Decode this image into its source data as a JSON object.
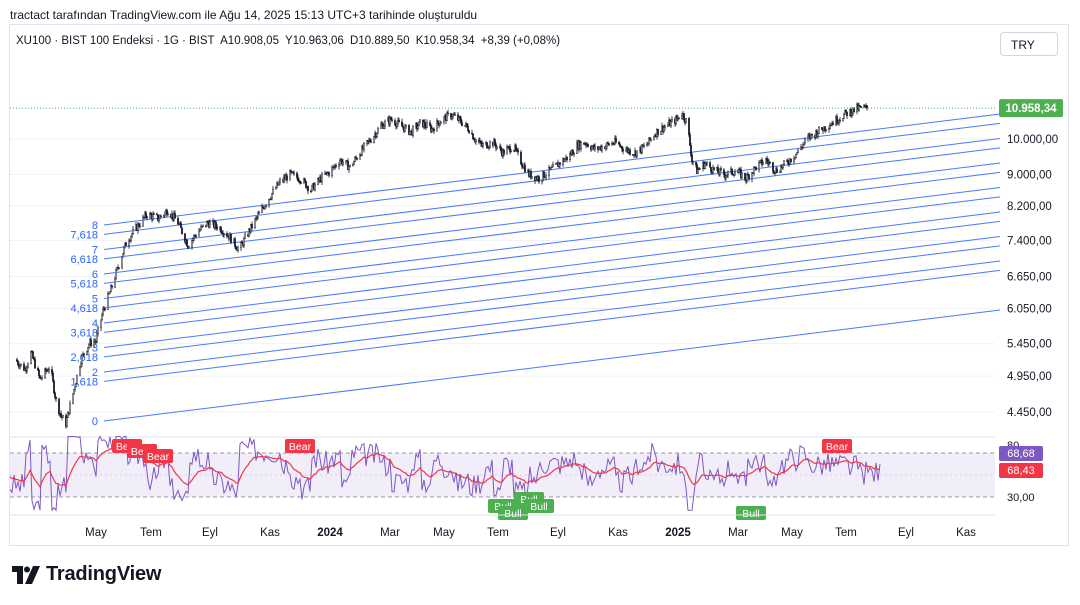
{
  "header": {
    "attribution": "tractact tarafından TradingView.com ile Ağu 14, 2025 15:13 UTC+3 tarihinde oluşturuldu"
  },
  "symbol": {
    "name": "XU100 · BIST 100 Endeksi · 1G · BIST",
    "open": "A10.908,05",
    "high": "Y10.963,06",
    "low": "D10.889,50",
    "close": "K10.958,34",
    "change": "+8,39 (+0,08%)"
  },
  "currency": "TRY",
  "brand": "TradingView",
  "colors": {
    "fib_line": "#2962ff",
    "fib_label": "#2962ff",
    "candle": "#131722",
    "price_badge": "#4caf50",
    "rsi_line": "#7e57c2",
    "rsi_ma": "#f23645",
    "rsi_band": "#ede7f6",
    "bear": "#f23645",
    "bull": "#4caf50"
  },
  "chart_data": [
    {
      "type": "candlestick",
      "series_description_from_image": "BIST 100 daily price with Fibonacci channel",
      "price_axis_labels": [
        "10.000,00",
        "9.000,00",
        "8.200,00",
        "7.400,00",
        "6.650,00",
        "6.050,00",
        "5.450,00",
        "4.950,00",
        "4.450,00"
      ],
      "price_axis_values": [
        10000,
        9000,
        8200,
        7400,
        6650,
        6050,
        5450,
        4950,
        4450
      ],
      "current_price_label": "10.958,34",
      "current_price": 10958.34,
      "log_scale": true,
      "time_axis_labels": [
        "May",
        "Tem",
        "Eyl",
        "Kas",
        "2024",
        "Mar",
        "May",
        "Tem",
        "Eyl",
        "Kas",
        "2025",
        "Mar",
        "May",
        "Tem",
        "Eyl",
        "Kas"
      ],
      "approx_close_path": [
        [
          "2023-04-15",
          5200
        ],
        [
          "2023-04-25",
          5050
        ],
        [
          "2023-05-01",
          5300
        ],
        [
          "2023-05-10",
          4900
        ],
        [
          "2023-05-20",
          5100
        ],
        [
          "2023-05-26",
          4600
        ],
        [
          "2023-05-31",
          4400
        ],
        [
          "2023-06-05",
          4300
        ],
        [
          "2023-06-12",
          4700
        ],
        [
          "2023-06-20",
          5200
        ],
        [
          "2023-06-28",
          5450
        ],
        [
          "2023-07-05",
          5500
        ],
        [
          "2023-07-12",
          6000
        ],
        [
          "2023-07-20",
          6400
        ],
        [
          "2023-07-28",
          6900
        ],
        [
          "2023-08-05",
          7400
        ],
        [
          "2023-08-15",
          7700
        ],
        [
          "2023-08-25",
          8000
        ],
        [
          "2023-09-05",
          7900
        ],
        [
          "2023-09-15",
          8100
        ],
        [
          "2023-09-25",
          7800
        ],
        [
          "2023-10-05",
          7300
        ],
        [
          "2023-10-15",
          7600
        ],
        [
          "2023-10-25",
          7800
        ],
        [
          "2023-11-05",
          7700
        ],
        [
          "2023-11-15",
          7500
        ],
        [
          "2023-11-25",
          7200
        ],
        [
          "2023-12-05",
          7600
        ],
        [
          "2023-12-15",
          8000
        ],
        [
          "2023-12-25",
          8400
        ],
        [
          "2024-01-05",
          8800
        ],
        [
          "2024-01-15",
          9000
        ],
        [
          "2024-01-25",
          8900
        ],
        [
          "2024-02-05",
          8600
        ],
        [
          "2024-02-15",
          8900
        ],
        [
          "2024-02-25",
          9100
        ],
        [
          "2024-03-05",
          9400
        ],
        [
          "2024-03-15",
          9200
        ],
        [
          "2024-03-25",
          9600
        ],
        [
          "2024-04-05",
          10000
        ],
        [
          "2024-04-15",
          10400
        ],
        [
          "2024-04-25",
          10600
        ],
        [
          "2024-05-05",
          10400
        ],
        [
          "2024-05-15",
          10200
        ],
        [
          "2024-05-25",
          10500
        ],
        [
          "2024-06-05",
          10300
        ],
        [
          "2024-06-15",
          10600
        ],
        [
          "2024-06-25",
          10750
        ],
        [
          "2024-07-05",
          10500
        ],
        [
          "2024-07-12",
          10300
        ],
        [
          "2024-07-18",
          10000
        ],
        [
          "2024-07-25",
          9800
        ],
        [
          "2024-08-05",
          9900
        ],
        [
          "2024-08-15",
          9600
        ],
        [
          "2024-08-25",
          9800
        ],
        [
          "2024-09-01",
          9400
        ],
        [
          "2024-09-10",
          9000
        ],
        [
          "2024-09-20",
          8900
        ],
        [
          "2024-10-01",
          9100
        ],
        [
          "2024-10-10",
          9300
        ],
        [
          "2024-10-20",
          9500
        ],
        [
          "2024-10-28",
          9800
        ],
        [
          "2024-11-05",
          9900
        ],
        [
          "2024-11-15",
          9700
        ],
        [
          "2024-11-25",
          9800
        ],
        [
          "2024-12-05",
          9900
        ],
        [
          "2024-12-15",
          9700
        ],
        [
          "2024-12-25",
          9600
        ],
        [
          "2025-01-05",
          9800
        ],
        [
          "2025-01-15",
          10200
        ],
        [
          "2025-01-25",
          10400
        ],
        [
          "2025-02-05",
          10600
        ],
        [
          "2025-02-10",
          10800
        ],
        [
          "2025-02-15",
          10500
        ],
        [
          "2025-02-20",
          9400
        ],
        [
          "2025-02-25",
          9100
        ],
        [
          "2025-03-05",
          9300
        ],
        [
          "2025-03-15",
          9100
        ],
        [
          "2025-03-25",
          9000
        ],
        [
          "2025-04-05",
          9100
        ],
        [
          "2025-04-15",
          8900
        ],
        [
          "2025-04-25",
          9200
        ],
        [
          "2025-05-05",
          9400
        ],
        [
          "2025-05-15",
          9100
        ],
        [
          "2025-05-25",
          9300
        ],
        [
          "2025-06-05",
          9600
        ],
        [
          "2025-06-15",
          10000
        ],
        [
          "2025-06-25",
          10200
        ],
        [
          "2025-07-05",
          10400
        ],
        [
          "2025-07-15",
          10600
        ],
        [
          "2025-07-25",
          10800
        ],
        [
          "2025-08-05",
          10950
        ],
        [
          "2025-08-14",
          10958
        ]
      ],
      "fibonacci_channel_levels": [
        "0",
        "1,618",
        "2",
        "2,618",
        "3",
        "3,618",
        "4",
        "4,618",
        "5",
        "5,618",
        "6",
        "6,618",
        "7",
        "7,618",
        "8"
      ]
    },
    {
      "type": "line",
      "panel": "RSI",
      "axis_labels": [
        "80",
        "30,00"
      ],
      "rsi_value_label": "68,68",
      "rsi_ma_label": "68,43",
      "signals": [
        {
          "label": "Bear",
          "date": "2023-08-05"
        },
        {
          "label": "Bear",
          "date": "2023-08-20"
        },
        {
          "label": "Bear",
          "date": "2023-09-05"
        },
        {
          "label": "Bear",
          "date": "2024-01-25"
        },
        {
          "label": "Bull",
          "date": "2024-08-15"
        },
        {
          "label": "Bull",
          "date": "2024-08-25"
        },
        {
          "label": "Bull",
          "date": "2024-09-10"
        },
        {
          "label": "Bull",
          "date": "2024-09-20"
        },
        {
          "label": "Bull",
          "date": "2025-04-20"
        },
        {
          "label": "Bear",
          "date": "2025-07-15"
        }
      ]
    }
  ]
}
